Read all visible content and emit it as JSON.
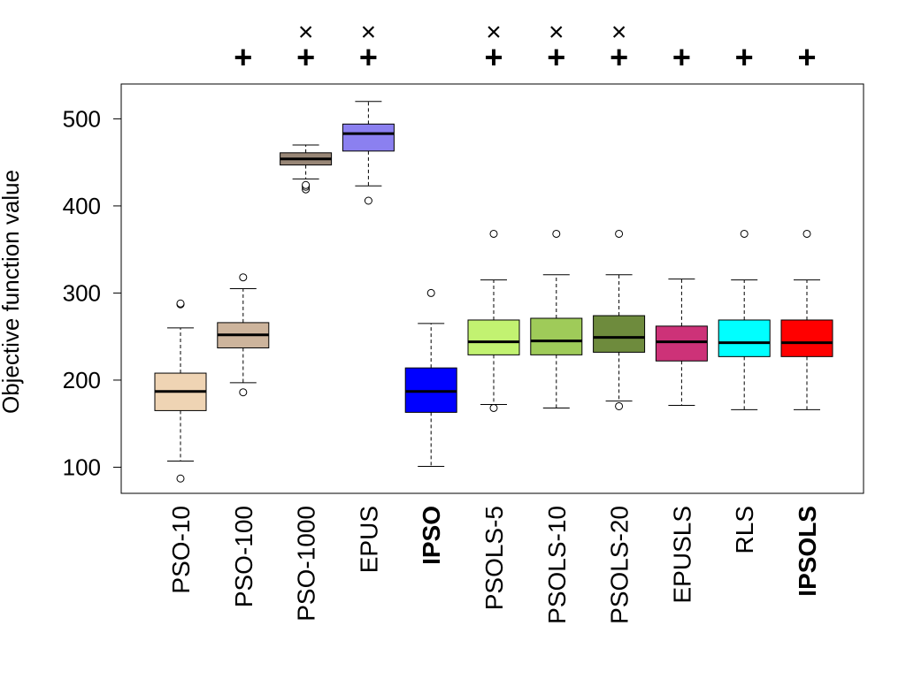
{
  "chart_data": {
    "type": "boxplot",
    "title": "",
    "xlabel": "",
    "ylabel": "Objective function value",
    "ylim": [
      70,
      540
    ],
    "yticks": [
      100,
      200,
      300,
      400,
      500
    ],
    "grid": false,
    "categories": [
      {
        "label": "PSO-10",
        "bold": false,
        "color": "#EFD4B4",
        "min": 107,
        "q1": 165,
        "median": 187,
        "q3": 208,
        "max": 260,
        "outliers": [
          87,
          287,
          288
        ],
        "plus": false,
        "cross": false
      },
      {
        "label": "PSO-100",
        "bold": false,
        "color": "#CDB49C",
        "min": 197,
        "q1": 237,
        "median": 252,
        "q3": 266,
        "max": 305,
        "outliers": [
          186,
          318
        ],
        "plus": true,
        "cross": false
      },
      {
        "label": "PSO-1000",
        "bold": false,
        "color": "#988676",
        "min": 431,
        "q1": 447,
        "median": 454,
        "q3": 461,
        "max": 470,
        "outliers": [
          419,
          422,
          424
        ],
        "plus": true,
        "cross": true
      },
      {
        "label": "EPUS",
        "bold": false,
        "color": "#8B80F0",
        "min": 423,
        "q1": 463,
        "median": 483,
        "q3": 494,
        "max": 520,
        "outliers": [
          406
        ],
        "plus": true,
        "cross": true
      },
      {
        "label": "IPSO",
        "bold": true,
        "color": "#0000FF",
        "min": 101,
        "q1": 163,
        "median": 187,
        "q3": 214,
        "max": 265,
        "outliers": [
          300
        ],
        "plus": false,
        "cross": false
      },
      {
        "label": "PSOLS-5",
        "bold": false,
        "color": "#C2F271",
        "min": 172,
        "q1": 229,
        "median": 244,
        "q3": 269,
        "max": 315,
        "outliers": [
          168,
          368
        ],
        "plus": true,
        "cross": true
      },
      {
        "label": "PSOLS-10",
        "bold": false,
        "color": "#9FCB59",
        "min": 168,
        "q1": 229,
        "median": 245,
        "q3": 271,
        "max": 321,
        "outliers": [
          368
        ],
        "plus": true,
        "cross": true
      },
      {
        "label": "PSOLS-20",
        "bold": false,
        "color": "#6E8B3D",
        "min": 176,
        "q1": 232,
        "median": 249,
        "q3": 274,
        "max": 321,
        "outliers": [
          170,
          368
        ],
        "plus": true,
        "cross": true
      },
      {
        "label": "EPUSLS",
        "bold": false,
        "color": "#CD3278",
        "min": 171,
        "q1": 222,
        "median": 244,
        "q3": 262,
        "max": 316,
        "outliers": [],
        "plus": true,
        "cross": false
      },
      {
        "label": "RLS",
        "bold": false,
        "color": "#00FFFF",
        "min": 166,
        "q1": 227,
        "median": 243,
        "q3": 269,
        "max": 315,
        "outliers": [
          368
        ],
        "plus": true,
        "cross": false
      },
      {
        "label": "IPSOLS",
        "bold": true,
        "color": "#FF0000",
        "min": 166,
        "q1": 227,
        "median": 243,
        "q3": 269,
        "max": 315,
        "outliers": [
          368
        ],
        "plus": true,
        "cross": false
      }
    ],
    "markers": {
      "plus": {
        "symbol": "+",
        "color": "#0000FF"
      },
      "cross": {
        "symbol": "×",
        "color": "#FF0000"
      }
    }
  }
}
